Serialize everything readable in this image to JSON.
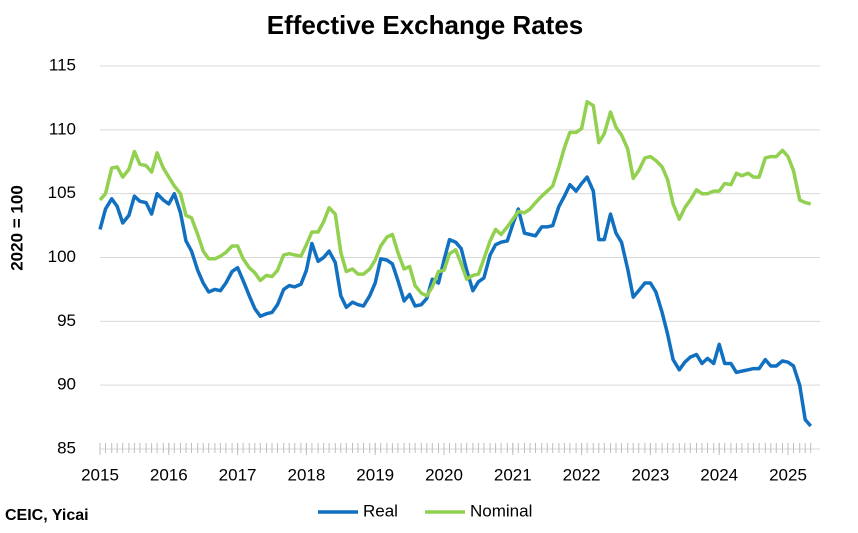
{
  "chart_data": {
    "type": "line",
    "title": "Effective Exchange Rates",
    "y_label": "2020 = 100",
    "source": "CEIC, Yicai",
    "x": [
      2015,
      2015.08,
      2015.17,
      2015.25,
      2015.33,
      2015.42,
      2015.5,
      2015.58,
      2015.67,
      2015.75,
      2015.83,
      2015.92,
      2016,
      2016.08,
      2016.17,
      2016.25,
      2016.33,
      2016.42,
      2016.5,
      2016.58,
      2016.67,
      2016.75,
      2016.83,
      2016.92,
      2017,
      2017.08,
      2017.17,
      2017.25,
      2017.33,
      2017.42,
      2017.5,
      2017.58,
      2017.67,
      2017.75,
      2017.83,
      2017.92,
      2018,
      2018.08,
      2018.17,
      2018.25,
      2018.33,
      2018.42,
      2018.5,
      2018.58,
      2018.67,
      2018.75,
      2018.83,
      2018.92,
      2019,
      2019.08,
      2019.17,
      2019.25,
      2019.33,
      2019.42,
      2019.5,
      2019.58,
      2019.67,
      2019.75,
      2019.83,
      2019.92,
      2020,
      2020.08,
      2020.17,
      2020.25,
      2020.33,
      2020.42,
      2020.5,
      2020.58,
      2020.67,
      2020.75,
      2020.83,
      2020.92,
      2021,
      2021.08,
      2021.17,
      2021.25,
      2021.33,
      2021.42,
      2021.5,
      2021.58,
      2021.67,
      2021.75,
      2021.83,
      2021.92,
      2022,
      2022.08,
      2022.17,
      2022.25,
      2022.33,
      2022.42,
      2022.5,
      2022.58,
      2022.67,
      2022.75,
      2022.83,
      2022.92,
      2023,
      2023.08,
      2023.17,
      2023.25,
      2023.33,
      2023.42,
      2023.5,
      2023.58,
      2023.67,
      2023.75,
      2023.83,
      2023.92,
      2024,
      2024.08,
      2024.17,
      2024.25,
      2024.33,
      2024.42,
      2024.5,
      2024.58,
      2024.67,
      2024.75,
      2024.83,
      2024.92,
      2025,
      2025.08,
      2025.17,
      2025.25,
      2025.33
    ],
    "series": [
      {
        "name": "Real",
        "color": "#1170c0",
        "values": [
          102.2,
          103.8,
          104.6,
          104.0,
          102.7,
          103.3,
          104.8,
          104.4,
          104.3,
          103.4,
          105.0,
          104.5,
          104.2,
          105.0,
          103.5,
          101.3,
          100.5,
          99.0,
          98.0,
          97.3,
          97.5,
          97.4,
          98.0,
          98.9,
          99.2,
          98.2,
          97.0,
          96.0,
          95.4,
          95.6,
          95.7,
          96.3,
          97.5,
          97.8,
          97.7,
          97.9,
          99.0,
          101.1,
          99.7,
          100.0,
          100.5,
          99.6,
          97.0,
          96.1,
          96.5,
          96.3,
          96.2,
          97.0,
          98.0,
          99.9,
          99.8,
          99.5,
          98.2,
          96.6,
          97.1,
          96.2,
          96.3,
          96.8,
          98.3,
          98.0,
          99.8,
          101.4,
          101.2,
          100.7,
          99.0,
          97.4,
          98.1,
          98.4,
          100.2,
          101.0,
          101.2,
          101.3,
          102.6,
          103.8,
          101.9,
          101.8,
          101.7,
          102.4,
          102.4,
          102.5,
          104.0,
          104.8,
          105.7,
          105.2,
          105.8,
          106.3,
          105.2,
          101.4,
          101.4,
          103.4,
          101.9,
          101.2,
          99.1,
          96.9,
          97.4,
          98.0,
          98.0,
          97.3,
          95.7,
          94.0,
          92.0,
          91.2,
          91.8,
          92.2,
          92.4,
          91.7,
          92.1,
          91.7,
          93.2,
          91.7,
          91.7,
          91.0,
          91.1,
          91.2,
          91.3,
          91.3,
          92.0,
          91.5,
          91.5,
          91.9,
          91.8,
          91.5,
          90.0,
          87.3,
          86.8
        ]
      },
      {
        "name": "Nominal",
        "color": "#92d050",
        "values": [
          104.5,
          105.0,
          107.0,
          107.1,
          106.3,
          106.9,
          108.3,
          107.3,
          107.2,
          106.7,
          108.2,
          107.0,
          106.3,
          105.6,
          105.0,
          103.3,
          103.1,
          101.8,
          100.5,
          99.9,
          99.9,
          100.1,
          100.4,
          100.9,
          100.9,
          99.9,
          99.2,
          98.8,
          98.2,
          98.6,
          98.5,
          99.0,
          100.2,
          100.3,
          100.2,
          100.1,
          101.0,
          102.0,
          102.0,
          102.8,
          103.9,
          103.4,
          100.4,
          98.9,
          99.1,
          98.7,
          98.7,
          99.1,
          99.8,
          100.9,
          101.6,
          101.8,
          100.4,
          99.1,
          99.3,
          97.8,
          97.2,
          97.0,
          97.7,
          98.9,
          99.0,
          100.3,
          100.6,
          99.5,
          98.3,
          98.6,
          98.7,
          99.9,
          101.3,
          102.2,
          101.8,
          102.4,
          103.0,
          103.6,
          103.5,
          103.8,
          104.3,
          104.8,
          105.2,
          105.6,
          107.1,
          108.6,
          109.8,
          109.8,
          110.1,
          112.2,
          111.9,
          109.0,
          109.7,
          111.4,
          110.2,
          109.6,
          108.5,
          106.2,
          106.8,
          107.8,
          107.9,
          107.6,
          107.1,
          106.1,
          104.2,
          103.0,
          103.9,
          104.5,
          105.3,
          105.0,
          105.0,
          105.2,
          105.2,
          105.8,
          105.7,
          106.6,
          106.4,
          106.6,
          106.3,
          106.3,
          107.8,
          107.9,
          107.9,
          108.4,
          107.9,
          106.8,
          104.5,
          104.3,
          104.2
        ]
      }
    ],
    "xlim": [
      2015,
      2025.47
    ],
    "xticks": [
      2015,
      2016,
      2017,
      2018,
      2019,
      2020,
      2021,
      2022,
      2023,
      2024,
      2025
    ],
    "ylim": [
      85,
      115
    ],
    "yticks": [
      85,
      90,
      95,
      100,
      105,
      110,
      115
    ],
    "grid": true,
    "legend": "bottom"
  }
}
